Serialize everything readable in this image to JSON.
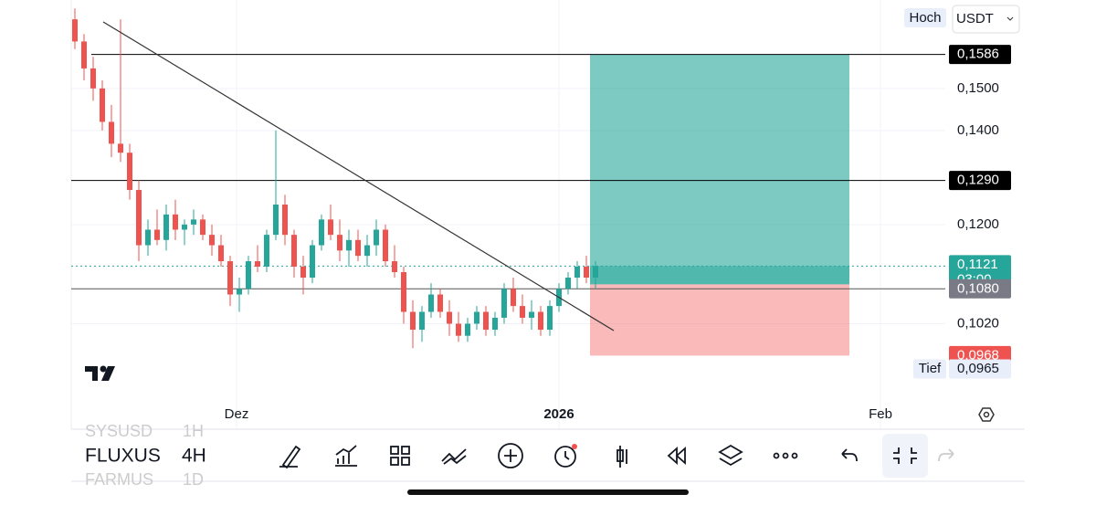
{
  "chart_data": {
    "type": "candlestick",
    "log_scale": true,
    "grid": true,
    "up_color": "#26a69a",
    "down_color": "#ef5350",
    "ylim": [
      0.0858,
      0.1734
    ],
    "yticks": [
      {
        "value": 0.15,
        "label": "0,1500"
      },
      {
        "value": 0.14,
        "label": "0,1400"
      },
      {
        "value": 0.12,
        "label": "0,1200"
      },
      {
        "value": 0.102,
        "label": "0,1020"
      }
    ],
    "xlim": [
      0,
      95.3
    ],
    "xticks": [
      {
        "value": 17.7,
        "label": "Dez"
      },
      {
        "value": 53,
        "label": "2026"
      },
      {
        "value": 88.2,
        "label": "Feb"
      }
    ],
    "ohlc": [
      [
        0.168,
        0.171,
        0.16,
        0.162
      ],
      [
        0.162,
        0.164,
        0.152,
        0.155
      ],
      [
        0.155,
        0.158,
        0.147,
        0.15
      ],
      [
        0.15,
        0.152,
        0.14,
        0.142
      ],
      [
        0.142,
        0.146,
        0.134,
        0.137
      ],
      [
        0.137,
        0.168,
        0.133,
        0.135
      ],
      [
        0.135,
        0.137,
        0.125,
        0.127
      ],
      [
        0.127,
        0.129,
        0.113,
        0.116
      ],
      [
        0.116,
        0.121,
        0.114,
        0.119
      ],
      [
        0.119,
        0.123,
        0.116,
        0.117
      ],
      [
        0.117,
        0.124,
        0.115,
        0.122
      ],
      [
        0.122,
        0.125,
        0.117,
        0.119
      ],
      [
        0.119,
        0.121,
        0.116,
        0.12
      ],
      [
        0.12,
        0.123,
        0.118,
        0.121
      ],
      [
        0.121,
        0.122,
        0.117,
        0.118
      ],
      [
        0.118,
        0.12,
        0.114,
        0.116
      ],
      [
        0.116,
        0.118,
        0.112,
        0.113
      ],
      [
        0.113,
        0.114,
        0.105,
        0.107
      ],
      [
        0.107,
        0.11,
        0.104,
        0.108
      ],
      [
        0.108,
        0.114,
        0.107,
        0.113
      ],
      [
        0.113,
        0.116,
        0.111,
        0.112
      ],
      [
        0.112,
        0.119,
        0.111,
        0.118
      ],
      [
        0.118,
        0.14,
        0.117,
        0.124
      ],
      [
        0.124,
        0.126,
        0.116,
        0.118
      ],
      [
        0.118,
        0.119,
        0.11,
        0.112
      ],
      [
        0.112,
        0.114,
        0.107,
        0.11
      ],
      [
        0.11,
        0.117,
        0.109,
        0.116
      ],
      [
        0.116,
        0.122,
        0.115,
        0.121
      ],
      [
        0.121,
        0.124,
        0.117,
        0.118
      ],
      [
        0.118,
        0.121,
        0.113,
        0.115
      ],
      [
        0.115,
        0.119,
        0.112,
        0.117
      ],
      [
        0.117,
        0.119,
        0.113,
        0.114
      ],
      [
        0.114,
        0.118,
        0.112,
        0.116
      ],
      [
        0.116,
        0.121,
        0.114,
        0.119
      ],
      [
        0.119,
        0.12,
        0.112,
        0.113
      ],
      [
        0.113,
        0.116,
        0.11,
        0.111
      ],
      [
        0.111,
        0.112,
        0.102,
        0.104
      ],
      [
        0.104,
        0.106,
        0.098,
        0.101
      ],
      [
        0.101,
        0.105,
        0.099,
        0.104
      ],
      [
        0.104,
        0.109,
        0.103,
        0.107
      ],
      [
        0.107,
        0.108,
        0.103,
        0.104
      ],
      [
        0.104,
        0.106,
        0.1,
        0.102
      ],
      [
        0.102,
        0.104,
        0.099,
        0.1
      ],
      [
        0.1,
        0.103,
        0.099,
        0.102
      ],
      [
        0.102,
        0.105,
        0.101,
        0.104
      ],
      [
        0.104,
        0.105,
        0.1,
        0.101
      ],
      [
        0.101,
        0.104,
        0.1,
        0.103
      ],
      [
        0.103,
        0.109,
        0.102,
        0.108
      ],
      [
        0.108,
        0.11,
        0.104,
        0.105
      ],
      [
        0.105,
        0.107,
        0.102,
        0.103
      ],
      [
        0.103,
        0.106,
        0.101,
        0.104
      ],
      [
        0.104,
        0.105,
        0.1,
        0.101
      ],
      [
        0.101,
        0.106,
        0.1,
        0.105
      ],
      [
        0.105,
        0.109,
        0.104,
        0.108
      ],
      [
        0.108,
        0.111,
        0.107,
        0.11
      ],
      [
        0.11,
        0.113,
        0.108,
        0.112
      ],
      [
        0.112,
        0.114,
        0.109,
        0.11
      ],
      [
        0.11,
        0.113,
        0.108,
        0.1121
      ]
    ],
    "price_lines": [
      {
        "value": 0.1586,
        "label": "0,1586",
        "color": "#000000"
      },
      {
        "value": 0.129,
        "label": "0,1290",
        "color": "#000000"
      },
      {
        "value": 0.1121,
        "label": "0,1121",
        "color": "#26a69a",
        "countdown": "03:00"
      },
      {
        "value": 0.108,
        "label": "0,1080",
        "color": "#787b86"
      },
      {
        "value": 0.0968,
        "label": "0,0968",
        "color": "#ef5350"
      },
      {
        "value": 0.0965,
        "label": "0,0965",
        "color": "#e8eefa",
        "tag": "Tief"
      }
    ],
    "position": {
      "entry": 0.1088
    },
    "high_tag": "Hoch",
    "currency": "USDT"
  },
  "toolbar": {
    "prev_symbol": "SYSUSD",
    "prev_interval": "1H",
    "symbol": "FLUXUS",
    "interval": "4H",
    "next_symbol": "FARMUS",
    "next_interval": "1D"
  }
}
